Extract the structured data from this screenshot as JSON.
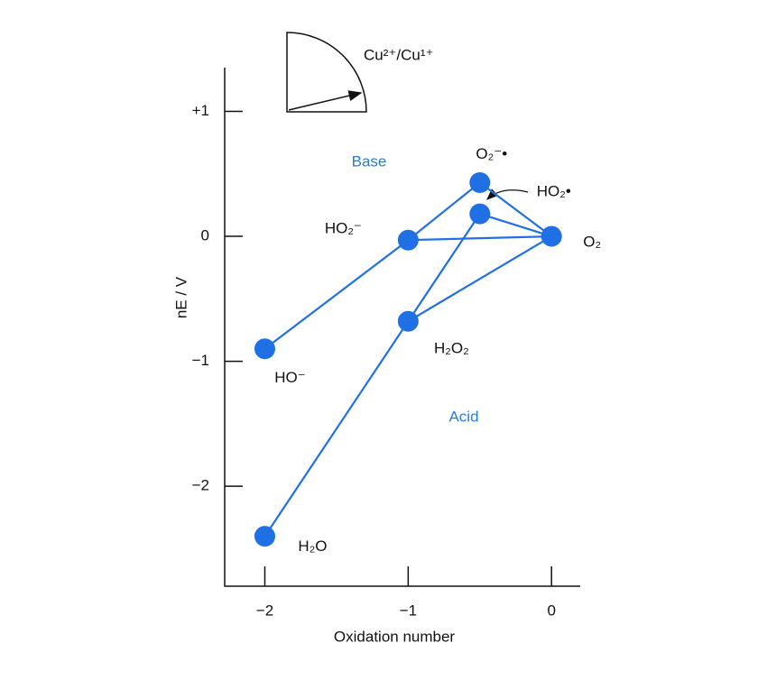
{
  "chart_data": {
    "type": "frost",
    "x_label": "Oxidation number",
    "y_label": "nE / V",
    "xlim": [
      -2.28,
      0.2
    ],
    "ylim": [
      -2.8,
      1.35
    ],
    "xticks": [
      {
        "value": -2,
        "label": "−2"
      },
      {
        "value": -1,
        "label": "−1"
      },
      0
    ],
    "yticks": [
      {
        "value": 1,
        "label": "+1"
      },
      0,
      {
        "value": -1,
        "label": "−1"
      },
      {
        "value": -2,
        "label": "−2"
      }
    ],
    "color": "#1f6fe5",
    "series": [
      {
        "name": "Base",
        "x": [
          -2,
          -1,
          -0.5,
          0,
          -1
        ],
        "values": [
          -0.9,
          -0.03,
          0.43,
          0,
          -0.03
        ]
      },
      {
        "name": "Acid",
        "x": [
          -2,
          -1,
          -0.5,
          0,
          -1
        ],
        "values": [
          -2.4,
          -0.68,
          0.18,
          0,
          -0.68
        ]
      }
    ],
    "points": {
      "labels": [
        "H₂O",
        "HO⁻",
        "HO₂⁻",
        "H₂O₂",
        "O₂⁻•",
        "HO₂•",
        "O₂"
      ],
      "x": [
        -2,
        -2,
        -1,
        -1,
        -0.5,
        -0.5,
        0
      ],
      "y": [
        -2.4,
        -0.9,
        -0.03,
        -0.68,
        0.43,
        0.18,
        0
      ]
    },
    "inset_label": "Cu²⁺/Cu¹⁺"
  }
}
